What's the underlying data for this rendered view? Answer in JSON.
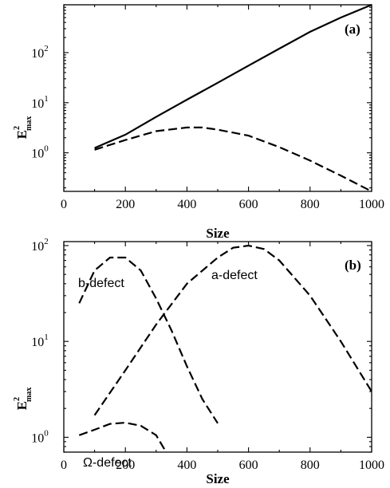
{
  "chart_data": [
    {
      "type": "line",
      "panel_label": "(a)",
      "xlabel": "Size",
      "ylabel_base": "E",
      "ylabel_sup": "2",
      "ylabel_sub": "max",
      "xlim": [
        0,
        1000
      ],
      "ylim": [
        0.17,
        900
      ],
      "yscale": "log",
      "xticks": [
        "0",
        "200",
        "400",
        "600",
        "800",
        "1000"
      ],
      "yticks": [
        {
          "base": "10",
          "exp": "0"
        },
        {
          "base": "10",
          "exp": "1"
        },
        {
          "base": "10",
          "exp": "2"
        }
      ],
      "series": [
        {
          "style": "solid",
          "x": [
            100,
            200,
            300,
            400,
            500,
            600,
            700,
            800,
            900,
            1000
          ],
          "y": [
            1.25,
            2.3,
            5.2,
            11.5,
            25,
            55,
            120,
            260,
            500,
            900
          ]
        },
        {
          "style": "dashed",
          "x": [
            100,
            200,
            300,
            400,
            450,
            500,
            600,
            700,
            800,
            900,
            1000
          ],
          "y": [
            1.15,
            1.8,
            2.7,
            3.2,
            3.2,
            2.9,
            2.2,
            1.3,
            0.7,
            0.35,
            0.17
          ]
        }
      ]
    },
    {
      "type": "line",
      "panel_label": "(b)",
      "xlabel": "Size",
      "ylabel_base": "E",
      "ylabel_sup": "2",
      "ylabel_sub": "max",
      "xlim": [
        0,
        1000
      ],
      "ylim": [
        0.7,
        110
      ],
      "yscale": "log",
      "xticks": [
        "0",
        "200",
        "400",
        "600",
        "800",
        "1000"
      ],
      "yticks": [
        {
          "base": "10",
          "exp": "0"
        },
        {
          "base": "10",
          "exp": "1"
        },
        {
          "base": "10",
          "exp": "2"
        }
      ],
      "series": [
        {
          "name": "a-defect",
          "style": "dashed",
          "x": [
            100,
            200,
            300,
            400,
            500,
            550,
            600,
            650,
            700,
            800,
            900,
            1000
          ],
          "y": [
            1.7,
            5,
            15,
            40,
            75,
            95,
            100,
            92,
            70,
            30,
            10,
            3
          ]
        },
        {
          "name": "b-defect",
          "style": "dashed",
          "x": [
            50,
            100,
            150,
            200,
            250,
            300,
            350,
            400,
            450,
            500
          ],
          "y": [
            25,
            55,
            75,
            75,
            55,
            28,
            13,
            5.5,
            2.5,
            1.4
          ]
        },
        {
          "name": "Ω-defect",
          "style": "dashed",
          "x": [
            50,
            100,
            150,
            200,
            250,
            300,
            330
          ],
          "y": [
            1.05,
            1.2,
            1.38,
            1.42,
            1.32,
            1.05,
            0.72
          ]
        }
      ]
    }
  ]
}
